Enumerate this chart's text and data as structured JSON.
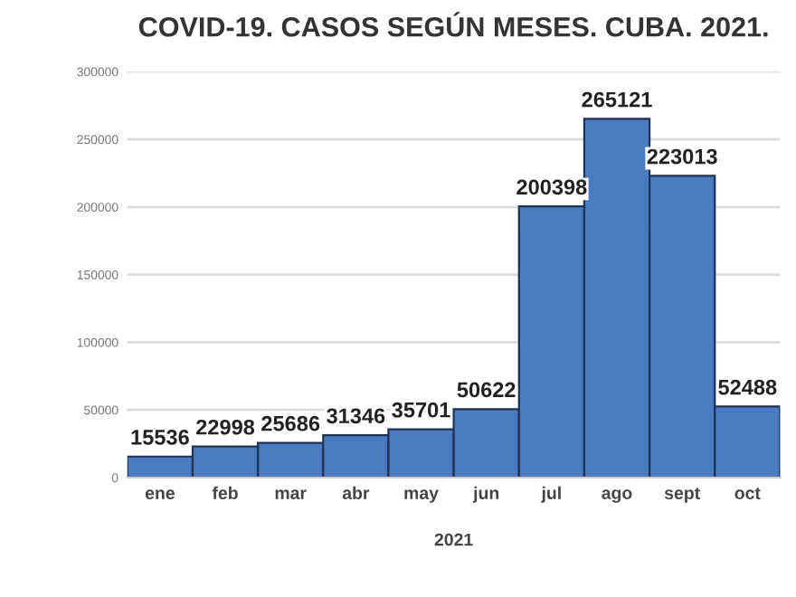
{
  "chart_data": {
    "type": "bar",
    "title": "COVID-19. CASOS SEGÚN MESES. CUBA. 2021.",
    "xlabel": "2021",
    "categories": [
      "ene",
      "feb",
      "mar",
      "abr",
      "may",
      "jun",
      "jul",
      "ago",
      "sept",
      "oct"
    ],
    "values": [
      15536,
      22998,
      25686,
      31346,
      35701,
      50622,
      200398,
      265121,
      223013,
      52488
    ],
    "color": "#4a7bbf",
    "data_labels": true,
    "ylim": [
      0,
      300000
    ],
    "yticks": [
      0,
      50000,
      100000,
      150000,
      200000,
      250000,
      300000
    ],
    "grid": "y"
  }
}
